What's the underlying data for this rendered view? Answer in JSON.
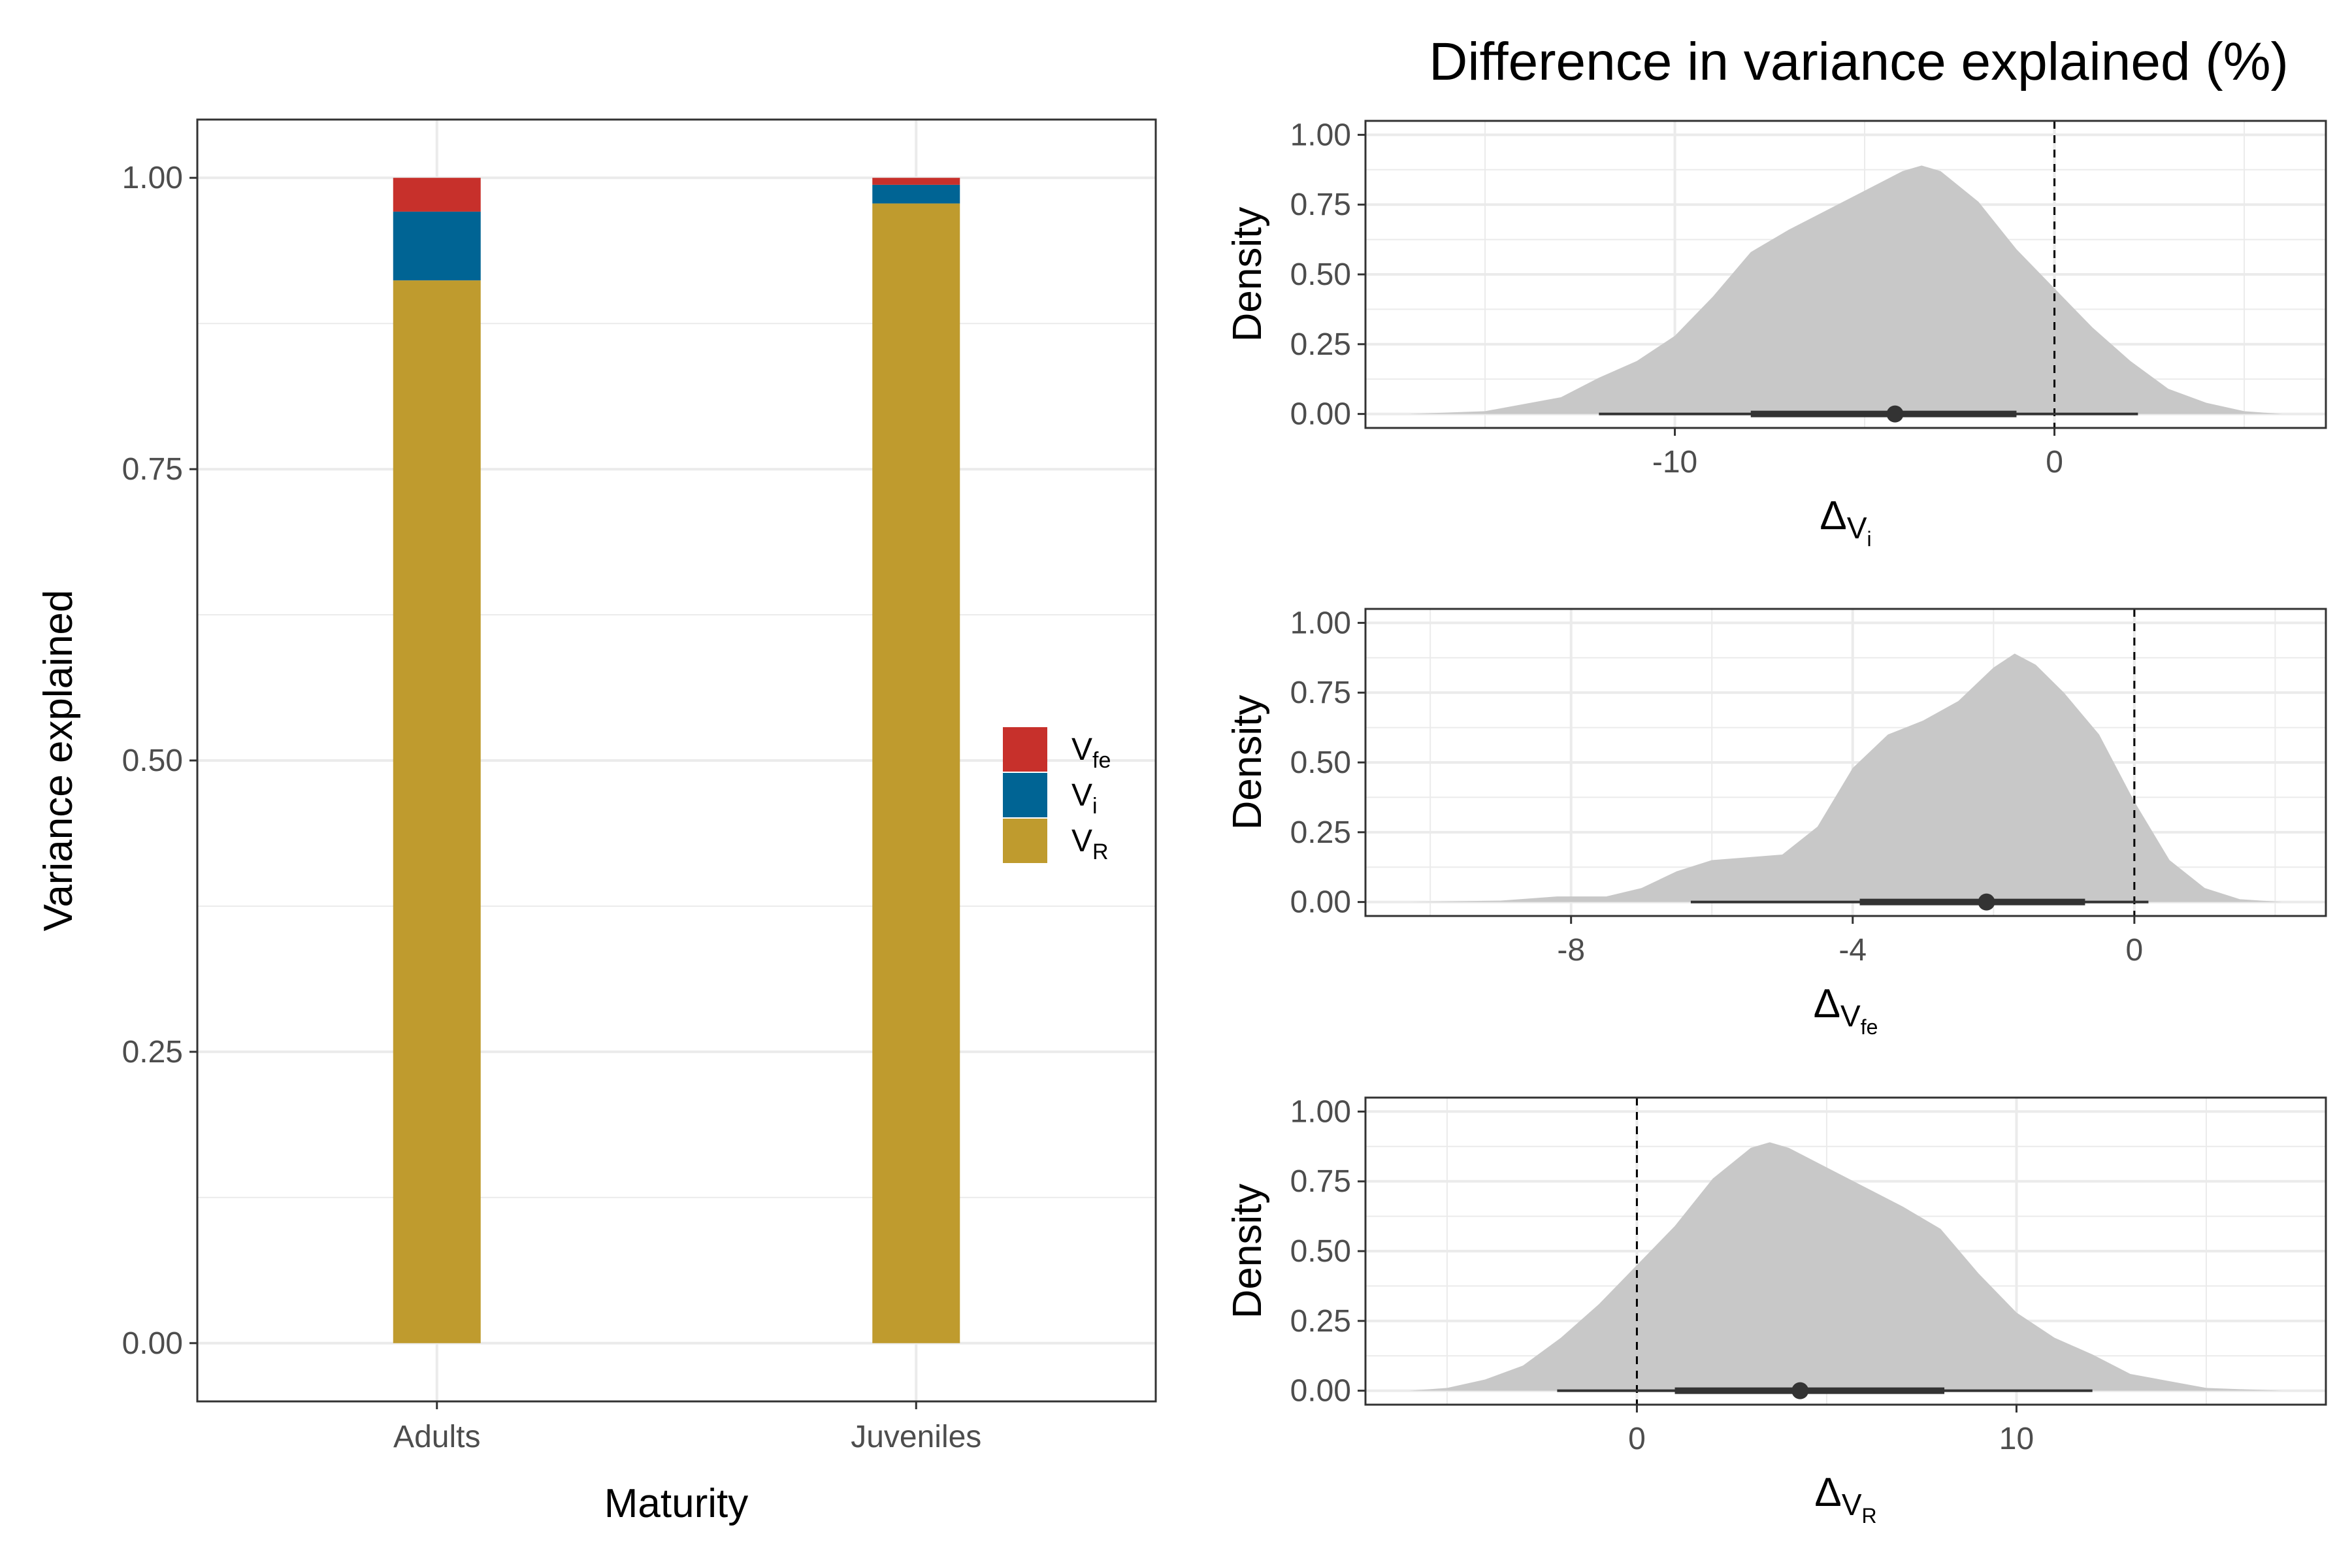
{
  "chart_data": [
    {
      "type": "bar",
      "stacked": true,
      "xlabel": "Maturity",
      "ylabel": "Variance explained",
      "categories": [
        "Adults",
        "Juveniles"
      ],
      "ylim": [
        0,
        1
      ],
      "yticks": [
        "0.00",
        "0.25",
        "0.50",
        "0.75",
        "1.00"
      ],
      "series": [
        {
          "name": "V",
          "sub": "R",
          "color": "#bf9b2e",
          "values": [
            0.912,
            0.978
          ]
        },
        {
          "name": "V",
          "sub": "i",
          "color": "#006494",
          "values": [
            0.059,
            0.016
          ]
        },
        {
          "name": "V",
          "sub": "fe",
          "color": "#c7302b",
          "values": [
            0.029,
            0.006
          ]
        }
      ],
      "legend": "right",
      "grid": true
    },
    {
      "type": "area",
      "title": "Difference in variance explained (%)",
      "panels": [
        {
          "xlabel_symbol": "Δ",
          "xlabel_sub": "V",
          "xlabel_subsub": "i",
          "ylabel": "Density",
          "xlim": [
            -17,
            6
          ],
          "xticks": [
            -10,
            0
          ],
          "ylim": [
            0,
            1
          ],
          "yticks": [
            "0.00",
            "0.25",
            "0.50",
            "0.75",
            "1.00"
          ],
          "reference_line": 0,
          "density": {
            "x": [
              -17,
              -15,
              -13,
              -12,
              -11,
              -10,
              -9,
              -8,
              -7,
              -6,
              -5,
              -4,
              -3.5,
              -3,
              -2,
              -1,
              0,
              1,
              2,
              3,
              4,
              5,
              6
            ],
            "y": [
              0.0,
              0.01,
              0.06,
              0.13,
              0.19,
              0.28,
              0.42,
              0.58,
              0.66,
              0.73,
              0.8,
              0.87,
              0.89,
              0.87,
              0.76,
              0.59,
              0.45,
              0.31,
              0.19,
              0.09,
              0.04,
              0.01,
              0.0
            ]
          },
          "median": -4.2,
          "interval_inner": [
            -8.0,
            -1.0
          ],
          "interval_outer": [
            -12.0,
            2.2
          ]
        },
        {
          "xlabel_symbol": "Δ",
          "xlabel_sub": "V",
          "xlabel_subsub": "fe",
          "ylabel": "Density",
          "xlim": [
            -10.3,
            2.1
          ],
          "xticks": [
            -8,
            -4,
            0
          ],
          "ylim": [
            0,
            1
          ],
          "yticks": [
            "0.00",
            "0.25",
            "0.50",
            "0.75",
            "1.00"
          ],
          "reference_line": 0,
          "density": {
            "x": [
              -10.3,
              -9,
              -8.2,
              -7.5,
              -7,
              -6.5,
              -6,
              -5.5,
              -5,
              -4.5,
              -4,
              -3.5,
              -3,
              -2.5,
              -2,
              -1.7,
              -1.4,
              -1,
              -0.5,
              0,
              0.5,
              1,
              1.5,
              2.1
            ],
            "y": [
              0.0,
              0.005,
              0.02,
              0.02,
              0.05,
              0.11,
              0.15,
              0.16,
              0.17,
              0.27,
              0.48,
              0.6,
              0.65,
              0.72,
              0.84,
              0.89,
              0.85,
              0.75,
              0.6,
              0.36,
              0.15,
              0.05,
              0.01,
              0.0
            ]
          },
          "median": -2.1,
          "interval_inner": [
            -3.9,
            -0.7
          ],
          "interval_outer": [
            -6.3,
            0.2
          ]
        },
        {
          "xlabel_symbol": "Δ",
          "xlabel_sub": "V",
          "xlabel_subsub": "R",
          "ylabel": "Density",
          "xlim": [
            -6,
            17
          ],
          "xticks": [
            0,
            10
          ],
          "ylim": [
            0,
            1
          ],
          "yticks": [
            "0.00",
            "0.25",
            "0.50",
            "0.75",
            "1.00"
          ],
          "reference_line": 0,
          "density": {
            "x": [
              -6,
              -5,
              -4,
              -3,
              -2,
              -1,
              0,
              1,
              2,
              3,
              3.5,
              4,
              5,
              6,
              7,
              8,
              9,
              10,
              11,
              12,
              13,
              15,
              17
            ],
            "y": [
              0.0,
              0.01,
              0.04,
              0.09,
              0.19,
              0.31,
              0.45,
              0.59,
              0.76,
              0.87,
              0.89,
              0.87,
              0.8,
              0.73,
              0.66,
              0.58,
              0.42,
              0.28,
              0.19,
              0.13,
              0.06,
              0.01,
              0.0
            ]
          },
          "median": 4.3,
          "interval_inner": [
            1.0,
            8.1
          ],
          "interval_outer": [
            -2.1,
            12.0
          ]
        }
      ]
    }
  ]
}
